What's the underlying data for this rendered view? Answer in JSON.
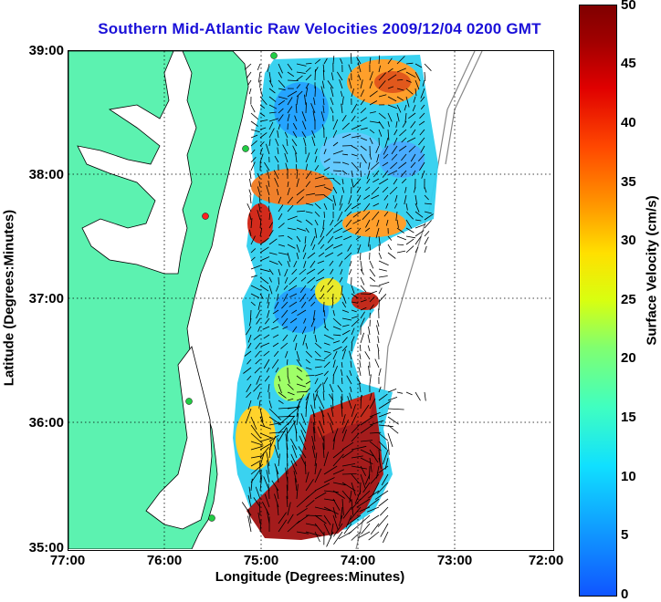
{
  "title": "Southern Mid-Atlantic Raw Velocities 2009/12/04 0200 GMT",
  "axes": {
    "xlabel": "Longitude (Degrees:Minutes)",
    "ylabel": "Latitude (Degrees:Minutes)",
    "xticks": [
      "77:00",
      "76:00",
      "75:00",
      "74:00",
      "73:00",
      "72:00"
    ],
    "yticks": [
      "39:00",
      "38:00",
      "37:00",
      "36:00",
      "35:00"
    ]
  },
  "colorbar": {
    "label": "Surface Velocity (cm/s)",
    "ticks": [
      "50",
      "45",
      "40",
      "35",
      "30",
      "25",
      "20",
      "15",
      "10",
      "5",
      "0"
    ],
    "min": 0,
    "max": 50
  },
  "colors": {
    "land": "#5cf2b0",
    "title": "#1a10d8",
    "station": "#22cc44",
    "station_alt": "#ff2020"
  }
}
